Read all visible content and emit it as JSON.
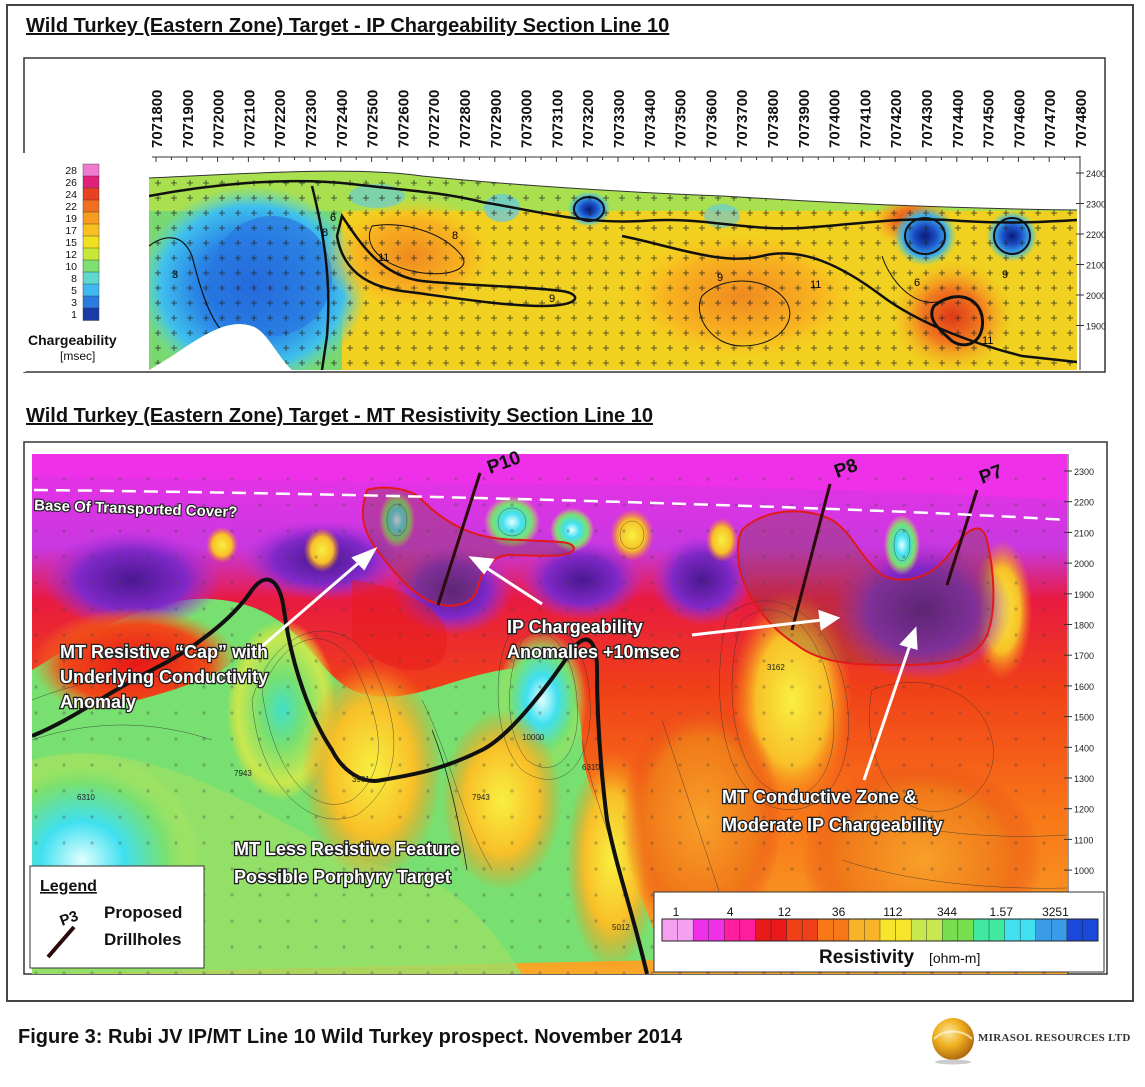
{
  "ip_section": {
    "title": "Wild Turkey (Eastern Zone) Target  - IP Chargeability Section Line 10",
    "easting_labels": [
      "7071800",
      "7071900",
      "7072000",
      "7072100",
      "7072200",
      "7072300",
      "7072400",
      "7072500",
      "7072600",
      "7072700",
      "7072800",
      "7072900",
      "7073000",
      "7073100",
      "7073200",
      "7073300",
      "7073400",
      "7073500",
      "7073600",
      "7073700",
      "7073800",
      "7073900",
      "7074000",
      "7074100",
      "7074200",
      "7074300",
      "7074400",
      "7074500",
      "7074600",
      "7074700",
      "7074800"
    ],
    "elevation_labels": [
      "2400",
      "2300",
      "2200",
      "2100",
      "2000",
      "1900"
    ],
    "colorbar_ticks": [
      "28",
      "26",
      "24",
      "22",
      "19",
      "17",
      "15",
      "12",
      "10",
      "8",
      "5",
      "3",
      "1"
    ],
    "colorbar_label": "Chargeability",
    "colorbar_unit": "[msec]",
    "contour_labels": [
      "3",
      "8",
      "6",
      "11",
      "8",
      "9",
      "9",
      "11",
      "6",
      "9",
      "11"
    ]
  },
  "mt_section": {
    "title": "Wild Turkey (Eastern Zone) Target  - MT Resistivity Section Line 10",
    "elevation_labels": [
      "2300",
      "2200",
      "2100",
      "2000",
      "1900",
      "1800",
      "1700",
      "1600",
      "1500",
      "1400",
      "1300",
      "1200",
      "1100",
      "1000"
    ],
    "drillholes": [
      "P10",
      "P8",
      "P7"
    ],
    "cover_label": "Base Of Transported Cover?",
    "annotations": {
      "resistive_cap": [
        "MT Resistive “Cap” with",
        "Underlying  Conductivity",
        "Anomaly"
      ],
      "ip_anomalies": [
        "IP Chargeability",
        "Anomalies +10msec"
      ],
      "conductive_zone": [
        "MT Conductive Zone &",
        "Moderate IP Chargeability"
      ],
      "less_resistive": [
        "MT Less Resistive Feature",
        "Possible Porphyry Target"
      ]
    },
    "legend": {
      "title": "Legend",
      "symbol_label": "P3",
      "text_lines": [
        "Proposed",
        "Drillholes"
      ]
    },
    "resistivity_ticks": [
      "1",
      "4",
      "12",
      "36",
      "112",
      "344",
      "1.57",
      "3251"
    ],
    "resistivity_label": "Resistivity",
    "resistivity_unit": "[ohm-m]",
    "contour_labels": [
      "7943",
      "3981",
      "10000",
      "6310",
      "7943",
      "3162",
      "5012",
      "6310"
    ]
  },
  "colors": {
    "ip_ramp": [
      "#1a3aa8",
      "#2a7ae0",
      "#40b8f0",
      "#60d8d0",
      "#7ee070",
      "#c8e838",
      "#f0e020",
      "#f8c020",
      "#f89c20",
      "#f07020",
      "#e84020",
      "#e0207a",
      "#f07ad0"
    ],
    "mt_ramp": [
      "#f5a0f0",
      "#ee30e8",
      "#ff1ea0",
      "#e81a1a",
      "#f04018",
      "#f87818",
      "#f8b428",
      "#f8e428",
      "#c8e850",
      "#78e050",
      "#40e8a0",
      "#40e0f0",
      "#3a9ce8",
      "#1a48d8"
    ]
  },
  "caption": "Figure 3: Rubi JV IP/MT Line 10 Wild Turkey prospect. November 2014",
  "logo_text": "MIRASOL RESOURCES LTD"
}
